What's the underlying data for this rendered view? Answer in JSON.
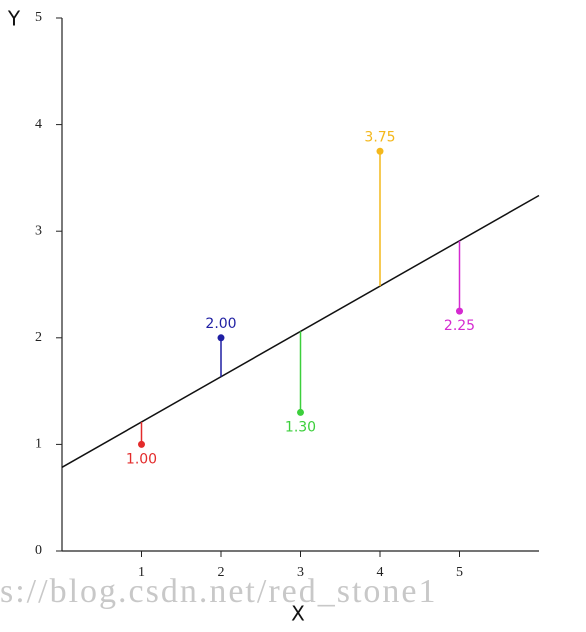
{
  "chart_data": {
    "type": "scatter",
    "x_label": "X",
    "y_label": "Y",
    "xlim": [
      0,
      6
    ],
    "ylim": [
      0,
      5
    ],
    "xticks": [
      1,
      2,
      3,
      4,
      5
    ],
    "yticks": [
      0,
      1,
      2,
      3,
      4,
      5
    ],
    "x": [
      1,
      2,
      3,
      4,
      5
    ],
    "values": [
      1,
      2,
      1.3,
      3.75,
      2.25
    ],
    "value_labels": [
      "1.00",
      "2.00",
      "1.30",
      "3.75",
      "2.25"
    ],
    "colors": [
      "#e32b2b",
      "#1f1fa3",
      "#3ccf3c",
      "#f4b81c",
      "#d52ad0"
    ],
    "fit_line": {
      "x": [
        0,
        6
      ],
      "values": [
        0.785,
        3.335
      ],
      "color": "#111111"
    },
    "watermark": "s://blog.csdn.net/red_stone1"
  }
}
